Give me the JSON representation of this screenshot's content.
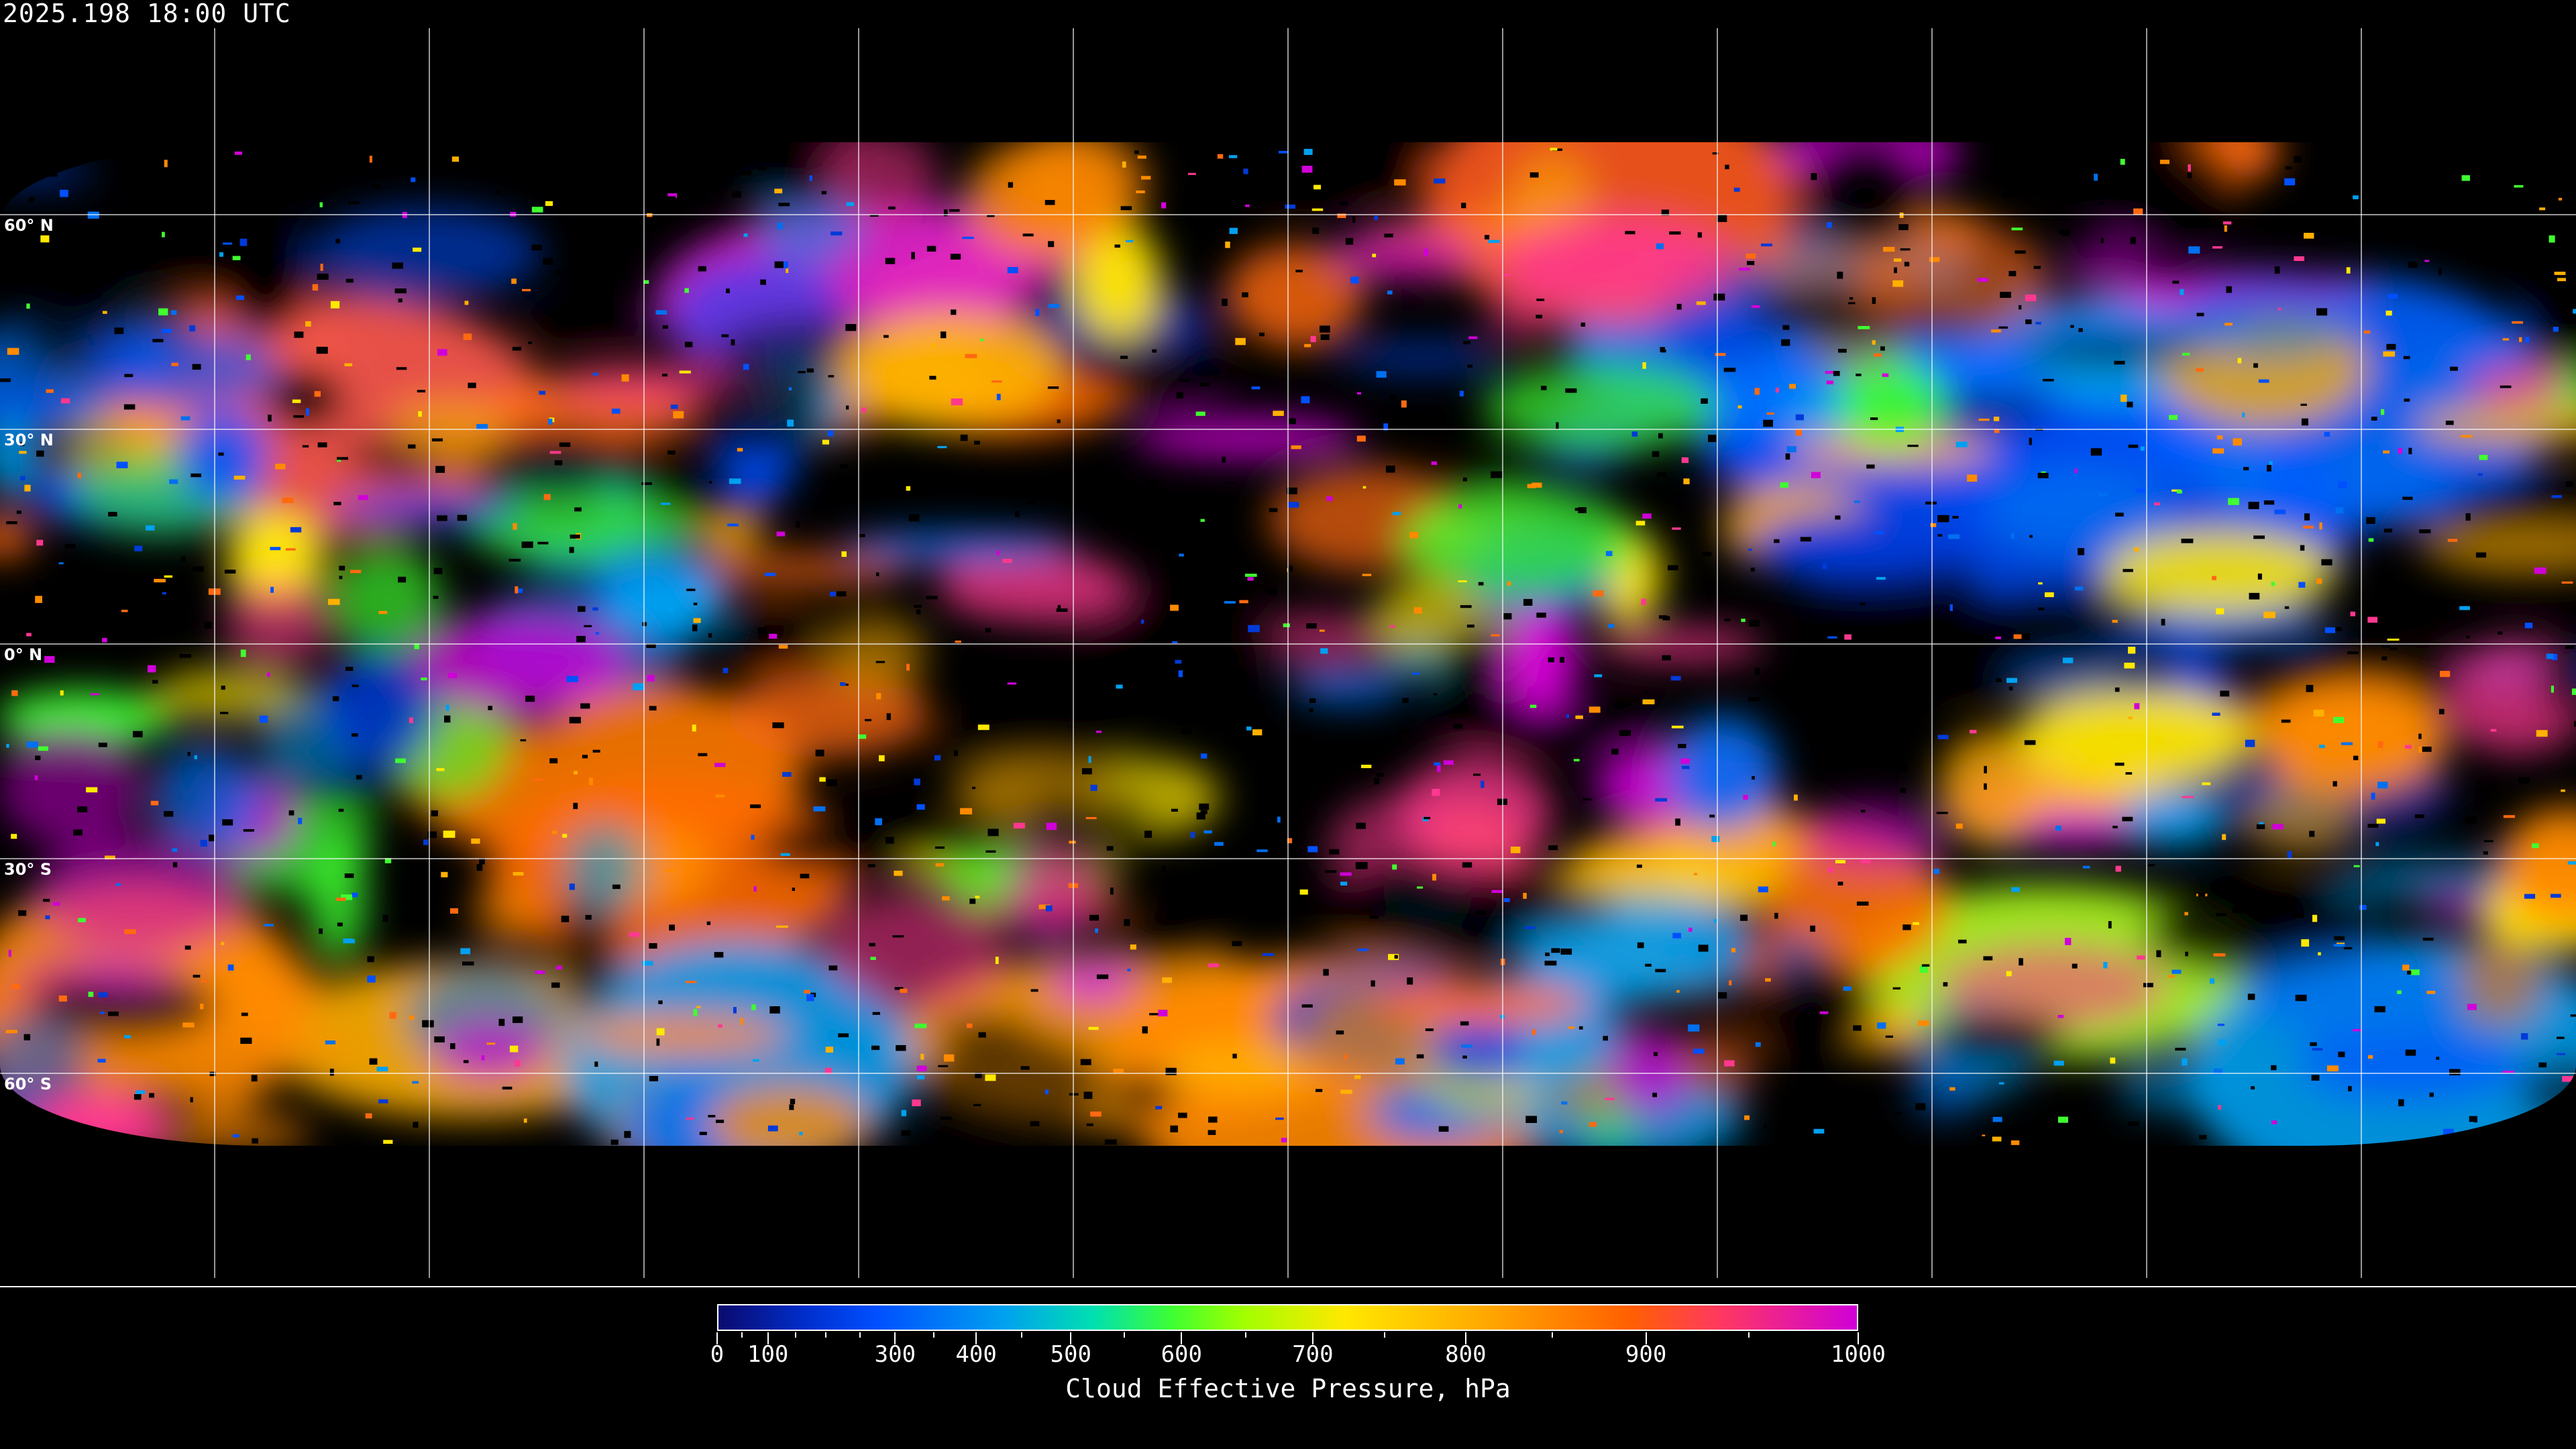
{
  "header": {
    "timestamp": "2025.198 18:00 UTC"
  },
  "map": {
    "projection": "equirectangular",
    "background": "#000000",
    "gridline_color": "#ffffff",
    "coastline_color": "#ffffff",
    "latitude_labels": [
      "60° N",
      "30° N",
      "0° N",
      "30° S",
      "60° S"
    ],
    "graticule_spacing_degrees": 30
  },
  "colorbar": {
    "title": "Cloud Effective Pressure, hPa",
    "range": [
      0,
      1000
    ],
    "tick_labels": [
      {
        "value": 0,
        "label": "0"
      },
      {
        "value": 100,
        "label": "100"
      },
      {
        "value": 300,
        "label": "300"
      },
      {
        "value": 400,
        "label": "400"
      },
      {
        "value": 500,
        "label": "500"
      },
      {
        "value": 600,
        "label": "600"
      },
      {
        "value": 700,
        "label": "700"
      },
      {
        "value": 800,
        "label": "800"
      },
      {
        "value": 900,
        "label": "900"
      },
      {
        "value": 1000,
        "label": "1000"
      }
    ],
    "colors": [
      "#0a0a6e",
      "#0030d0",
      "#0050ff",
      "#00a0f0",
      "#00e0b0",
      "#40ff30",
      "#a0ff00",
      "#ffe800",
      "#ffb000",
      "#ff6000",
      "#ff3860",
      "#d000d8"
    ]
  }
}
